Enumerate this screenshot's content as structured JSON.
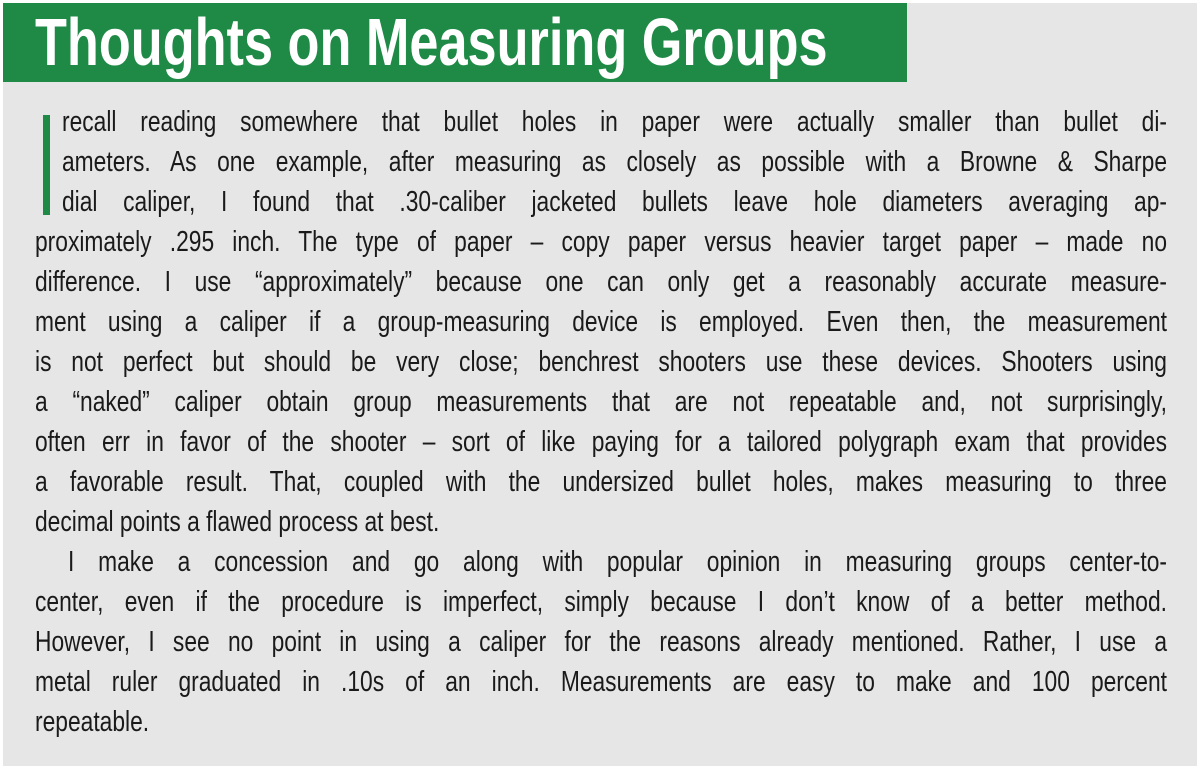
{
  "title": "Thoughts on Measuring Groups",
  "colors": {
    "accent": "#1e8a46",
    "panel": "#e6e6e6",
    "text": "#1a1a1a"
  },
  "drop_cap": "I",
  "paragraphs": [
    {
      "lines": [
        "recall reading somewhere that bullet holes in paper were actually smaller than bullet di-",
        "ameters. As one example, after measuring as closely as possible with a Browne & Sharpe",
        "dial caliper, I found that .30-caliber jacketed bullets leave hole diameters averaging ap-",
        "proximately .295 inch. The type of paper – copy paper versus heavier target paper – made no",
        "difference. I use “approximately” because one can only get a reasonably accurate measure-",
        "ment using a caliper if a group-measuring device is employed. Even then, the measurement",
        "is not perfect but should be very close; benchrest shooters use these devices. Shooters using",
        "a “naked” caliper obtain group measurements that are not repeatable and, not surprisingly,",
        "often err in favor of the shooter – sort of like paying for a tailored polygraph exam that provides",
        "a favorable result. That, coupled with the undersized bullet holes, makes measuring to three",
        "decimal points a flawed process at best."
      ]
    },
    {
      "lines": [
        "I make a concession and go along with popular opinion in measuring groups center-to-",
        "center, even if the procedure is imperfect, simply because I don’t know of a better method.",
        "However, I see no point in using a caliper for the reasons already mentioned. Rather, I use a",
        "metal ruler graduated in .10s of an inch. Measurements are easy to make and 100 percent",
        "repeatable."
      ]
    }
  ]
}
